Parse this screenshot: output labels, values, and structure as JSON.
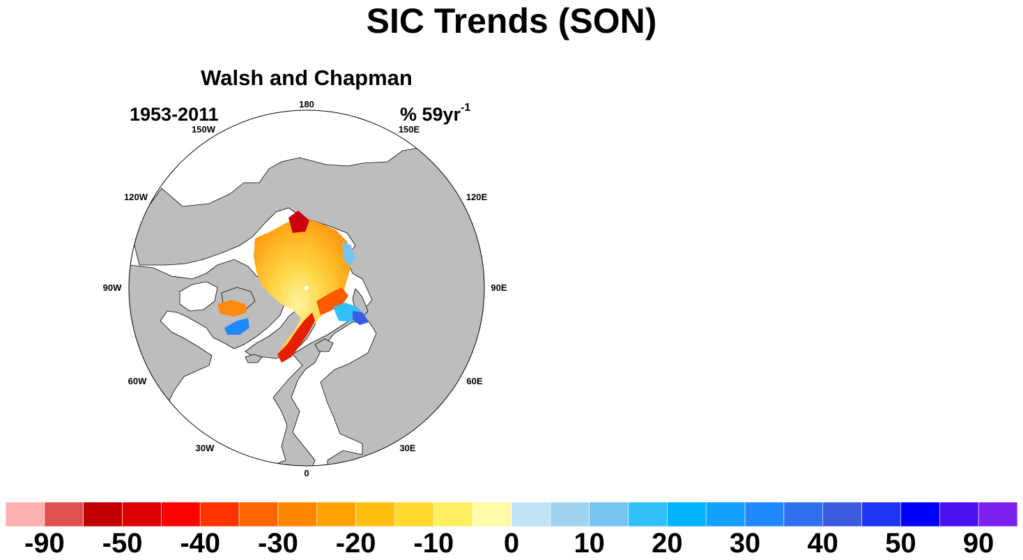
{
  "title": "SIC Trends (SON)",
  "panel": {
    "title": "Walsh and Chapman",
    "period": "1953-2011",
    "units_text": "% 59yr",
    "units_sup": "-1"
  },
  "longitude_labels": [
    "180",
    "150E",
    "120E",
    "90E",
    "60E",
    "30E",
    "0",
    "30W",
    "60W",
    "90W",
    "120W",
    "150W"
  ],
  "colors": {
    "land": "#bdbdbd",
    "ocean": "#ffffff",
    "outline": "#000000"
  },
  "chart_data": {
    "type": "heatmap",
    "projection": "north polar stereographic",
    "variable": "sea ice concentration trend",
    "colorbar": {
      "tick_labels": [
        "-90",
        "-50",
        "-40",
        "-30",
        "-20",
        "-10",
        "0",
        "10",
        "20",
        "30",
        "40",
        "50",
        "90"
      ],
      "colors": [
        "#ffb0b0",
        "#e05050",
        "#c00000",
        "#dd0000",
        "#ff0000",
        "#ff3300",
        "#ff6600",
        "#ff8800",
        "#ffa200",
        "#ffbe10",
        "#ffd830",
        "#ffee60",
        "#fff9a8",
        "#bfe4f5",
        "#9ed2ef",
        "#76c4f2",
        "#31c0f8",
        "#00b4ff",
        "#14a0ff",
        "#1f88ff",
        "#3070ee",
        "#3c5ce0",
        "#1f35f2",
        "#0000ff",
        "#4a10ef",
        "#7d22ee"
      ]
    }
  }
}
